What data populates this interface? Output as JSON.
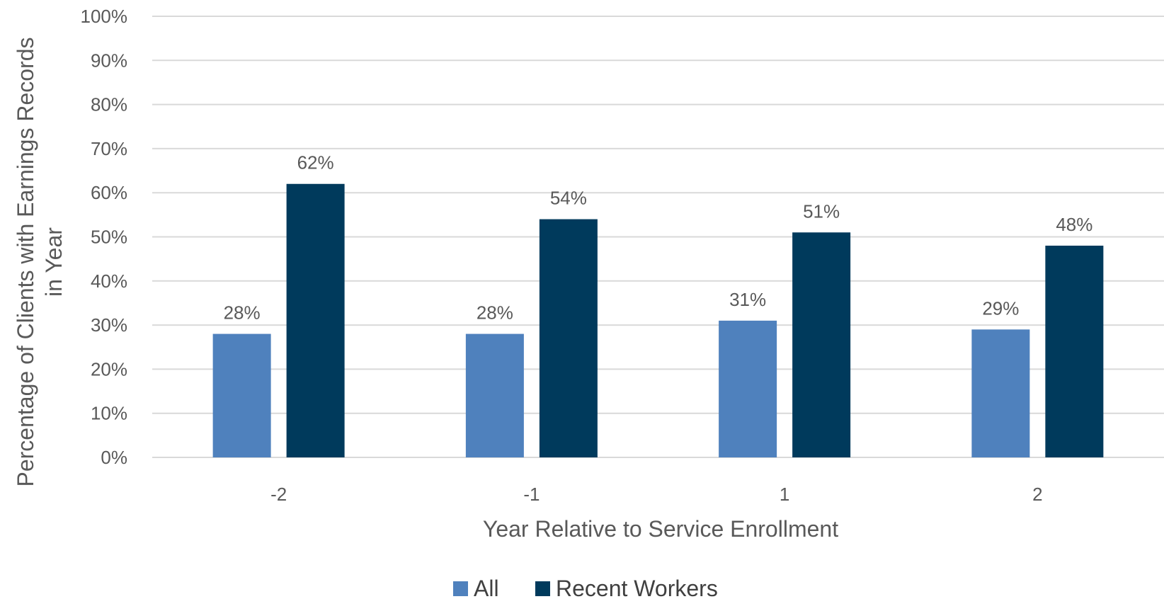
{
  "chart_data": {
    "type": "bar",
    "categories": [
      "-2",
      "-1",
      "1",
      "2"
    ],
    "series": [
      {
        "name": "All",
        "color": "#4f81bd",
        "values": [
          28,
          28,
          31,
          29
        ],
        "labels": [
          "28%",
          "28%",
          "31%",
          "29%"
        ]
      },
      {
        "name": "Recent Workers",
        "color": "#003a5c",
        "values": [
          62,
          54,
          51,
          48
        ],
        "labels": [
          "62%",
          "54%",
          "51%",
          "48%"
        ]
      }
    ],
    "title": "",
    "xlabel": "Year Relative to Service Enrollment",
    "ylabel_lines": [
      "Percentage of Clients with Earnings Records",
      "in Year"
    ],
    "ylim": [
      0,
      100
    ],
    "yticks": [
      0,
      10,
      20,
      30,
      40,
      50,
      60,
      70,
      80,
      90,
      100
    ],
    "ytick_labels": [
      "0%",
      "10%",
      "20%",
      "30%",
      "40%",
      "50%",
      "60%",
      "70%",
      "80%",
      "90%",
      "100%"
    ],
    "grid": true,
    "legend_position": "bottom"
  }
}
